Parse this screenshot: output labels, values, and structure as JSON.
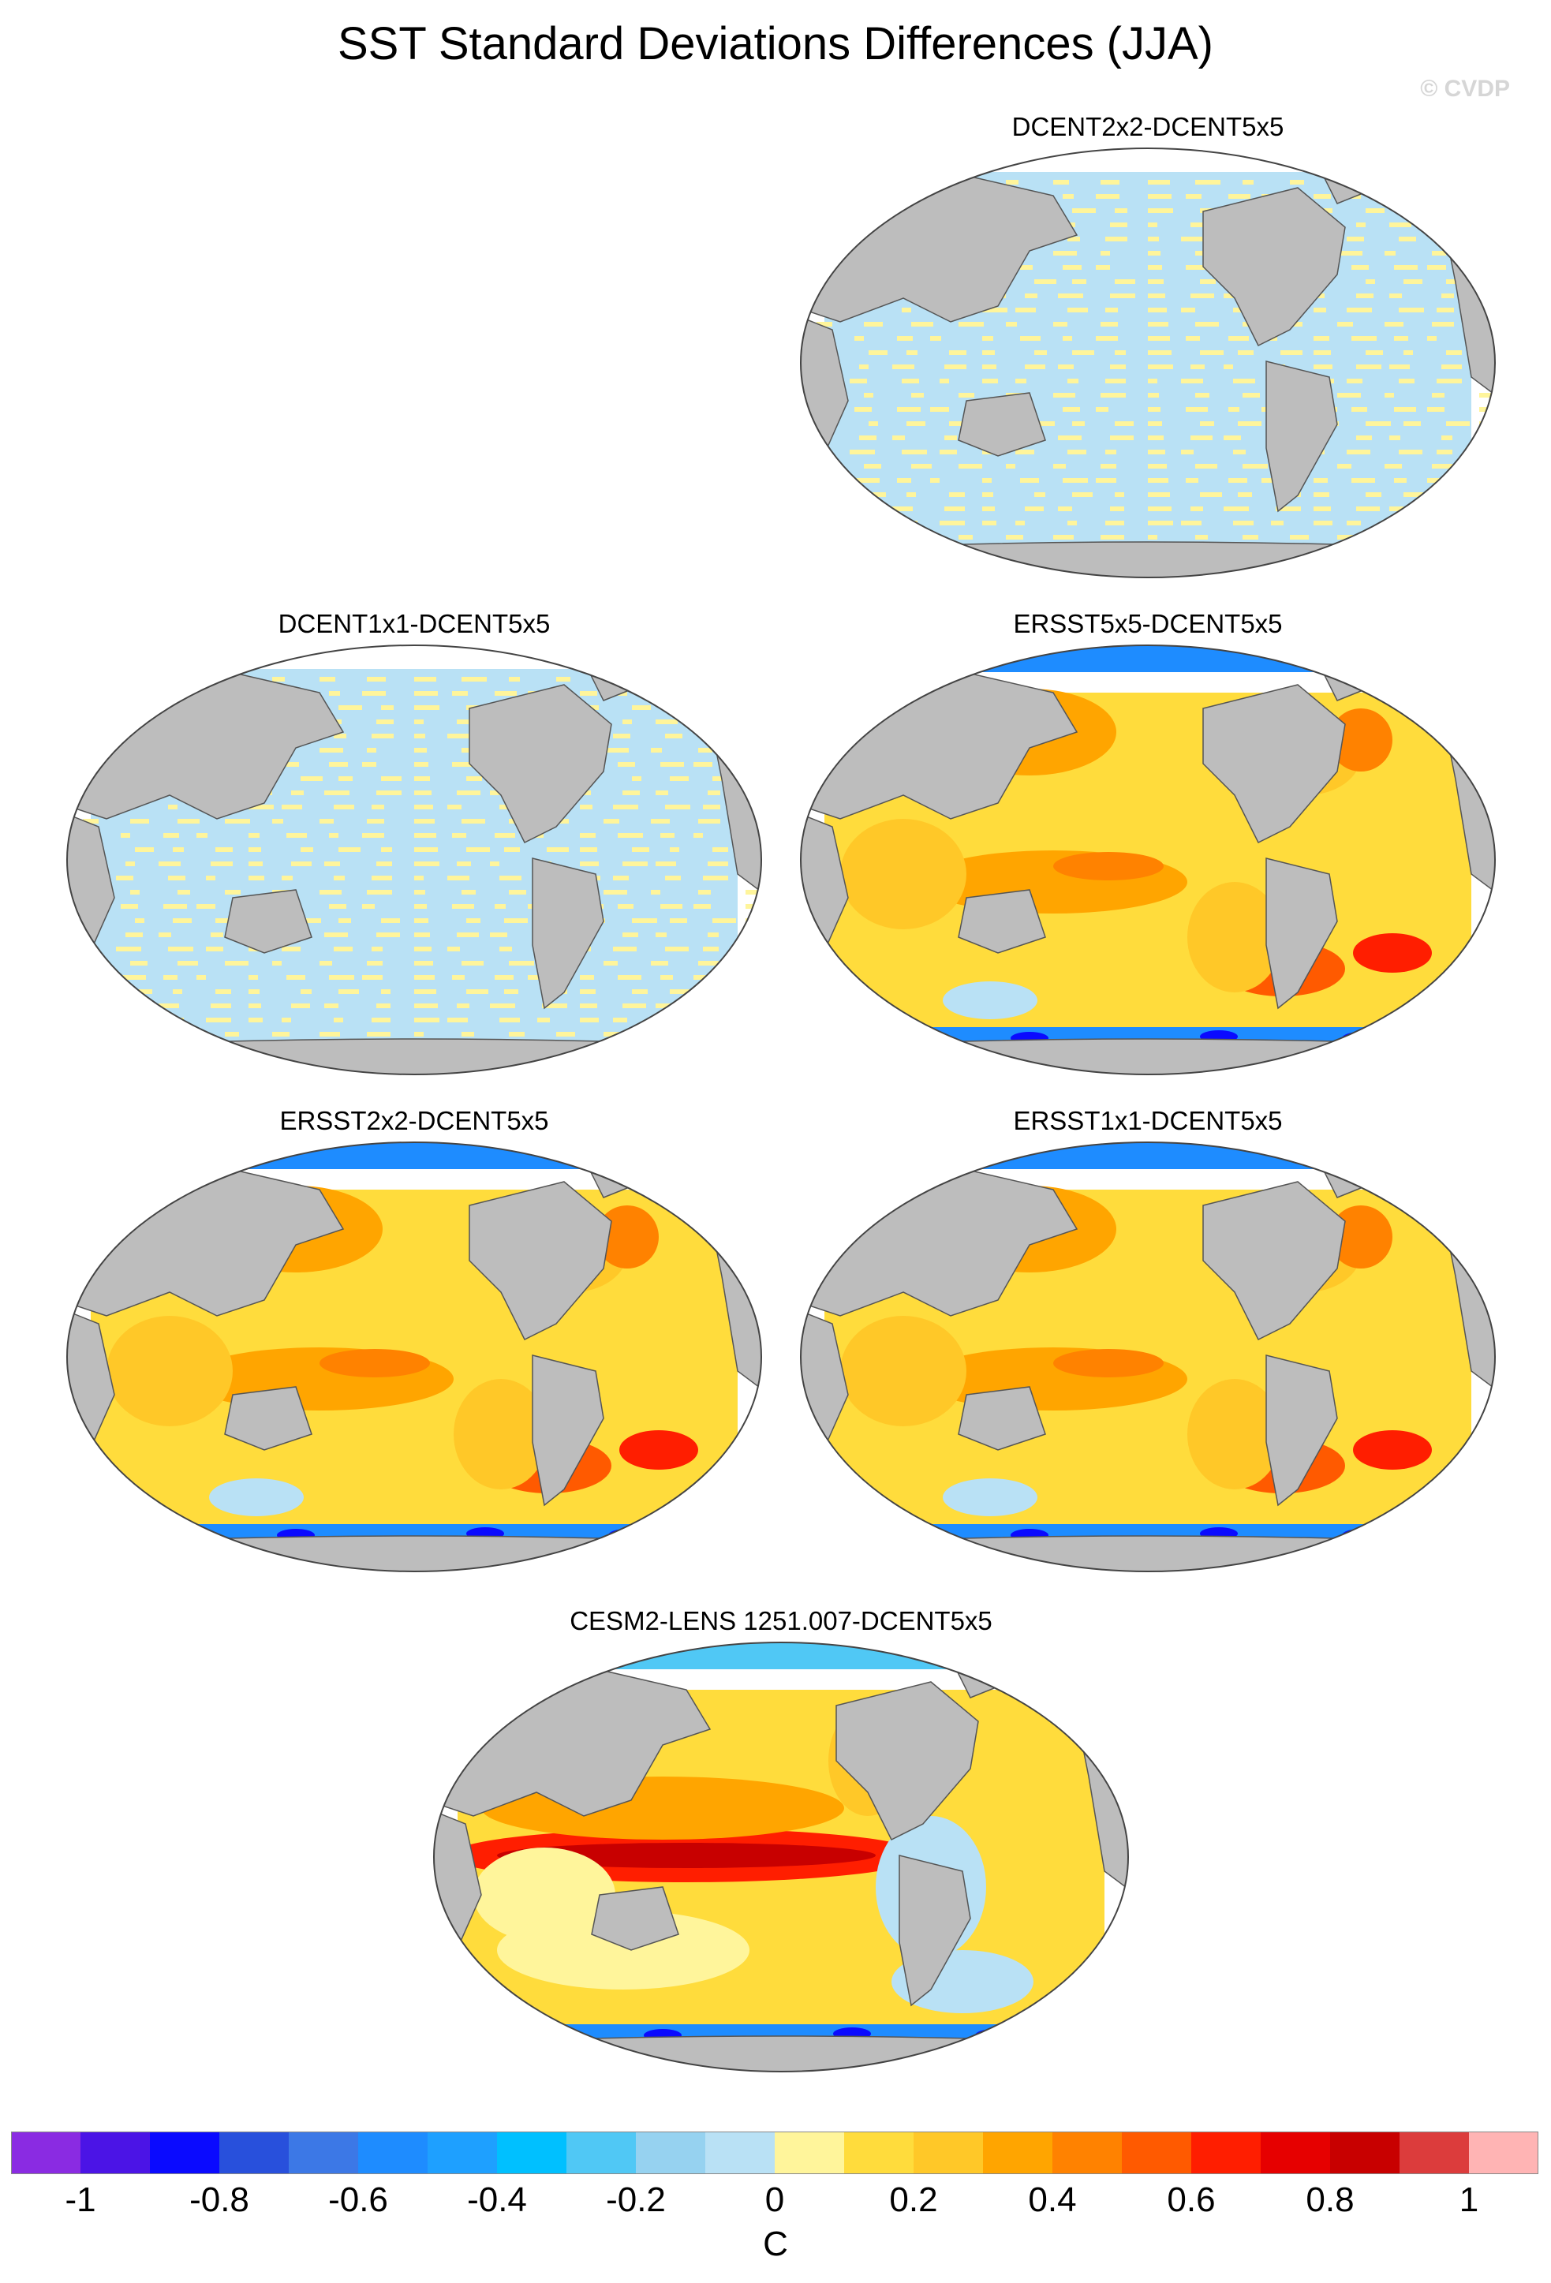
{
  "title": "SST Standard Deviations Differences (JJA)",
  "credit": "© CVDP",
  "colors": {
    "land": "#bdbdbd",
    "coast": "#555555",
    "background": "#ffffff",
    "palette": [
      "#8a2be2",
      "#4b14e6",
      "#0a0aff",
      "#2850dc",
      "#3c78e6",
      "#1e8cff",
      "#1ea0ff",
      "#00c0ff",
      "#50c8f5",
      "#96d2f0",
      "#b9e1f5",
      "#fff59b",
      "#ffdc3c",
      "#ffc828",
      "#ffa500",
      "#ff8200",
      "#ff5a00",
      "#ff1e00",
      "#e60000",
      "#c80000",
      "#dc3c3c",
      "#ffb4b4"
    ]
  },
  "panels": [
    {
      "id": "p1",
      "title": "DCENT2x2-DCENT5x5",
      "pattern": "grid"
    },
    {
      "id": "p2",
      "title": "DCENT1x1-DCENT5x5",
      "pattern": "grid"
    },
    {
      "id": "p3",
      "title": "ERSST5x5-DCENT5x5",
      "pattern": "warm"
    },
    {
      "id": "p4",
      "title": "ERSST2x2-DCENT5x5",
      "pattern": "warm"
    },
    {
      "id": "p5",
      "title": "ERSST1x1-DCENT5x5",
      "pattern": "warm"
    },
    {
      "id": "p6",
      "title": "CESM2-LENS 1251.007-DCENT5x5",
      "pattern": "model"
    }
  ],
  "colorbar": {
    "tick_labels": [
      "-1",
      "-0.8",
      "-0.6",
      "-0.4",
      "-0.2",
      "0",
      "0.2",
      "0.4",
      "0.6",
      "0.8",
      "1"
    ],
    "units": "C",
    "min": -1.1,
    "max": 1.1,
    "step": 0.1
  }
}
